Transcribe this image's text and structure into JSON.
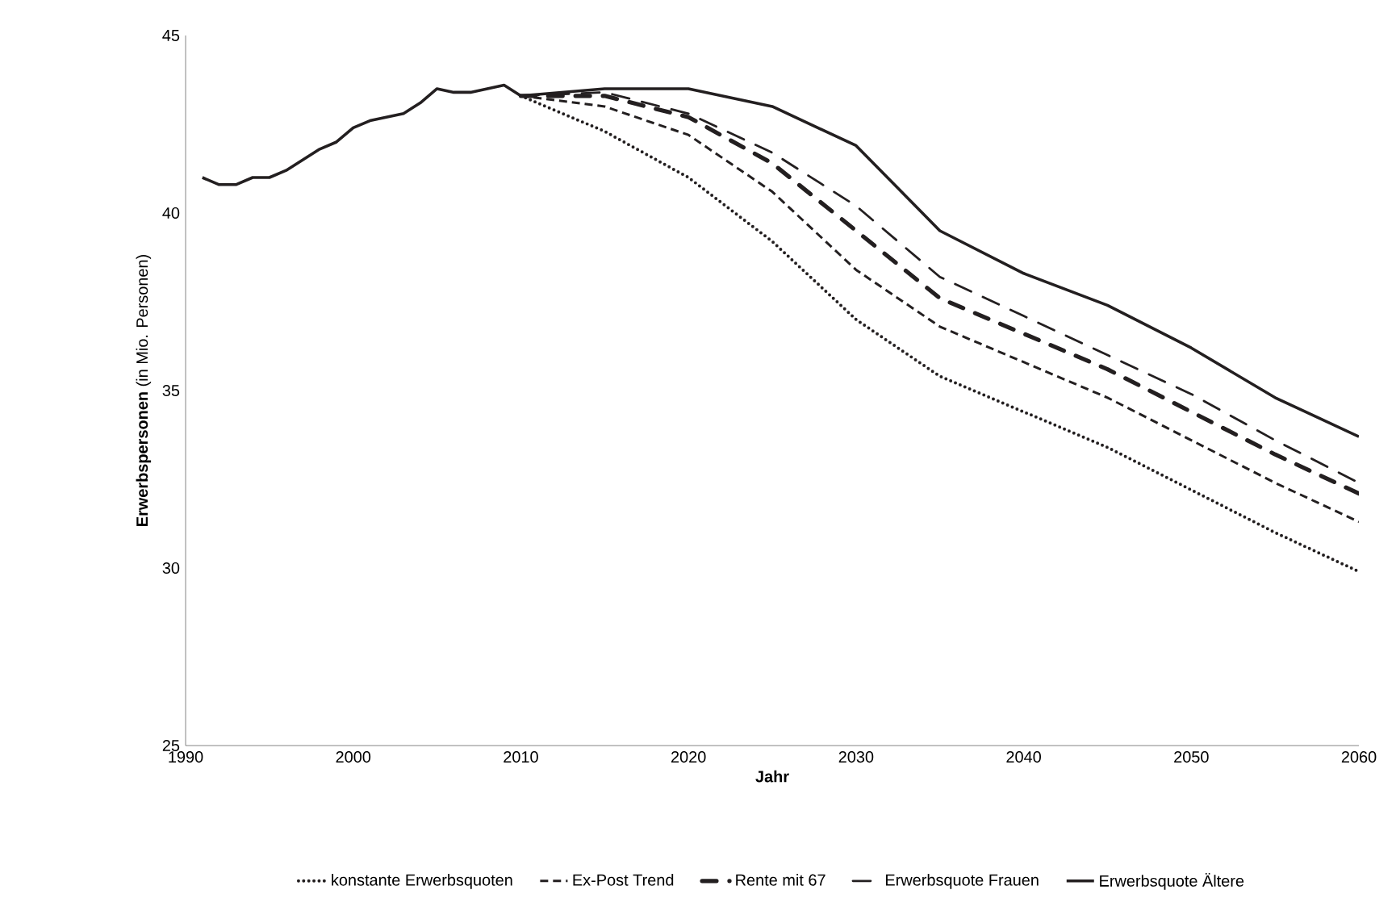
{
  "chart_data": {
    "type": "line",
    "xlabel": "Jahr",
    "ylabel": "**Erwerbspersonen** (in Mio. Personen)",
    "xlim": [
      1990,
      2060
    ],
    "xticks": [
      1990,
      2000,
      2010,
      2020,
      2030,
      2040,
      2050,
      2060
    ],
    "ylim": [
      25,
      45
    ],
    "yticks": [
      25,
      30,
      35,
      40,
      45
    ],
    "grid": false,
    "legend": "bottom",
    "series": [
      {
        "color": "#231f20",
        "line_style": "solid",
        "x": [
          1991,
          1992,
          1993,
          1994,
          1995,
          1996,
          1997,
          1998,
          1999,
          2000,
          2001,
          2002,
          2003,
          2004,
          2005,
          2006,
          2007,
          2008,
          2009,
          2010
        ],
        "values": [
          41.0,
          40.8,
          40.8,
          41.0,
          41.0,
          41.2,
          41.5,
          41.8,
          42.0,
          42.4,
          42.6,
          42.7,
          42.8,
          43.1,
          43.5,
          43.4,
          43.4,
          43.5,
          43.6,
          43.3
        ]
      },
      {
        "name": "konstante Erwerbsquoten",
        "color": "#231f20",
        "line_style": "dotted",
        "x": [
          2010,
          2015,
          2020,
          2025,
          2030,
          2035,
          2040,
          2045,
          2050,
          2055,
          2060
        ],
        "values": [
          43.3,
          42.3,
          41.0,
          39.2,
          37.0,
          35.4,
          34.4,
          33.4,
          32.2,
          31.0,
          29.9
        ]
      },
      {
        "name": "Ex-Post Trend",
        "color": "#231f20",
        "line_style": "dashed",
        "x": [
          2010,
          2015,
          2020,
          2025,
          2030,
          2035,
          2040,
          2045,
          2050,
          2055,
          2060
        ],
        "values": [
          43.3,
          43.0,
          42.2,
          40.6,
          38.4,
          36.8,
          35.8,
          34.8,
          33.6,
          32.4,
          31.3
        ]
      },
      {
        "name": "Rente mit 67",
        "color": "#231f20",
        "line_style": "dashdot",
        "x": [
          2010,
          2015,
          2020,
          2025,
          2030,
          2035,
          2040,
          2045,
          2050,
          2055,
          2060
        ],
        "values": [
          43.3,
          43.3,
          42.7,
          41.4,
          39.5,
          37.6,
          36.6,
          35.6,
          34.4,
          33.2,
          32.1
        ]
      },
      {
        "name": "Erwerbsquote Frauen",
        "color": "#231f20",
        "line_style": "dashdotdot",
        "x": [
          2010,
          2015,
          2020,
          2025,
          2030,
          2035,
          2040,
          2045,
          2050,
          2055,
          2060
        ],
        "values": [
          43.3,
          43.4,
          42.8,
          41.7,
          40.2,
          38.2,
          37.1,
          36.0,
          34.9,
          33.6,
          32.4
        ]
      },
      {
        "name": "Erwerbsquote Ältere",
        "color": "#231f20",
        "line_style": "solid",
        "x": [
          2010,
          2015,
          2020,
          2025,
          2030,
          2035,
          2040,
          2045,
          2050,
          2055,
          2060
        ],
        "values": [
          43.3,
          43.5,
          43.5,
          43.0,
          41.9,
          39.5,
          38.3,
          37.4,
          36.2,
          34.8,
          33.7
        ]
      }
    ]
  }
}
